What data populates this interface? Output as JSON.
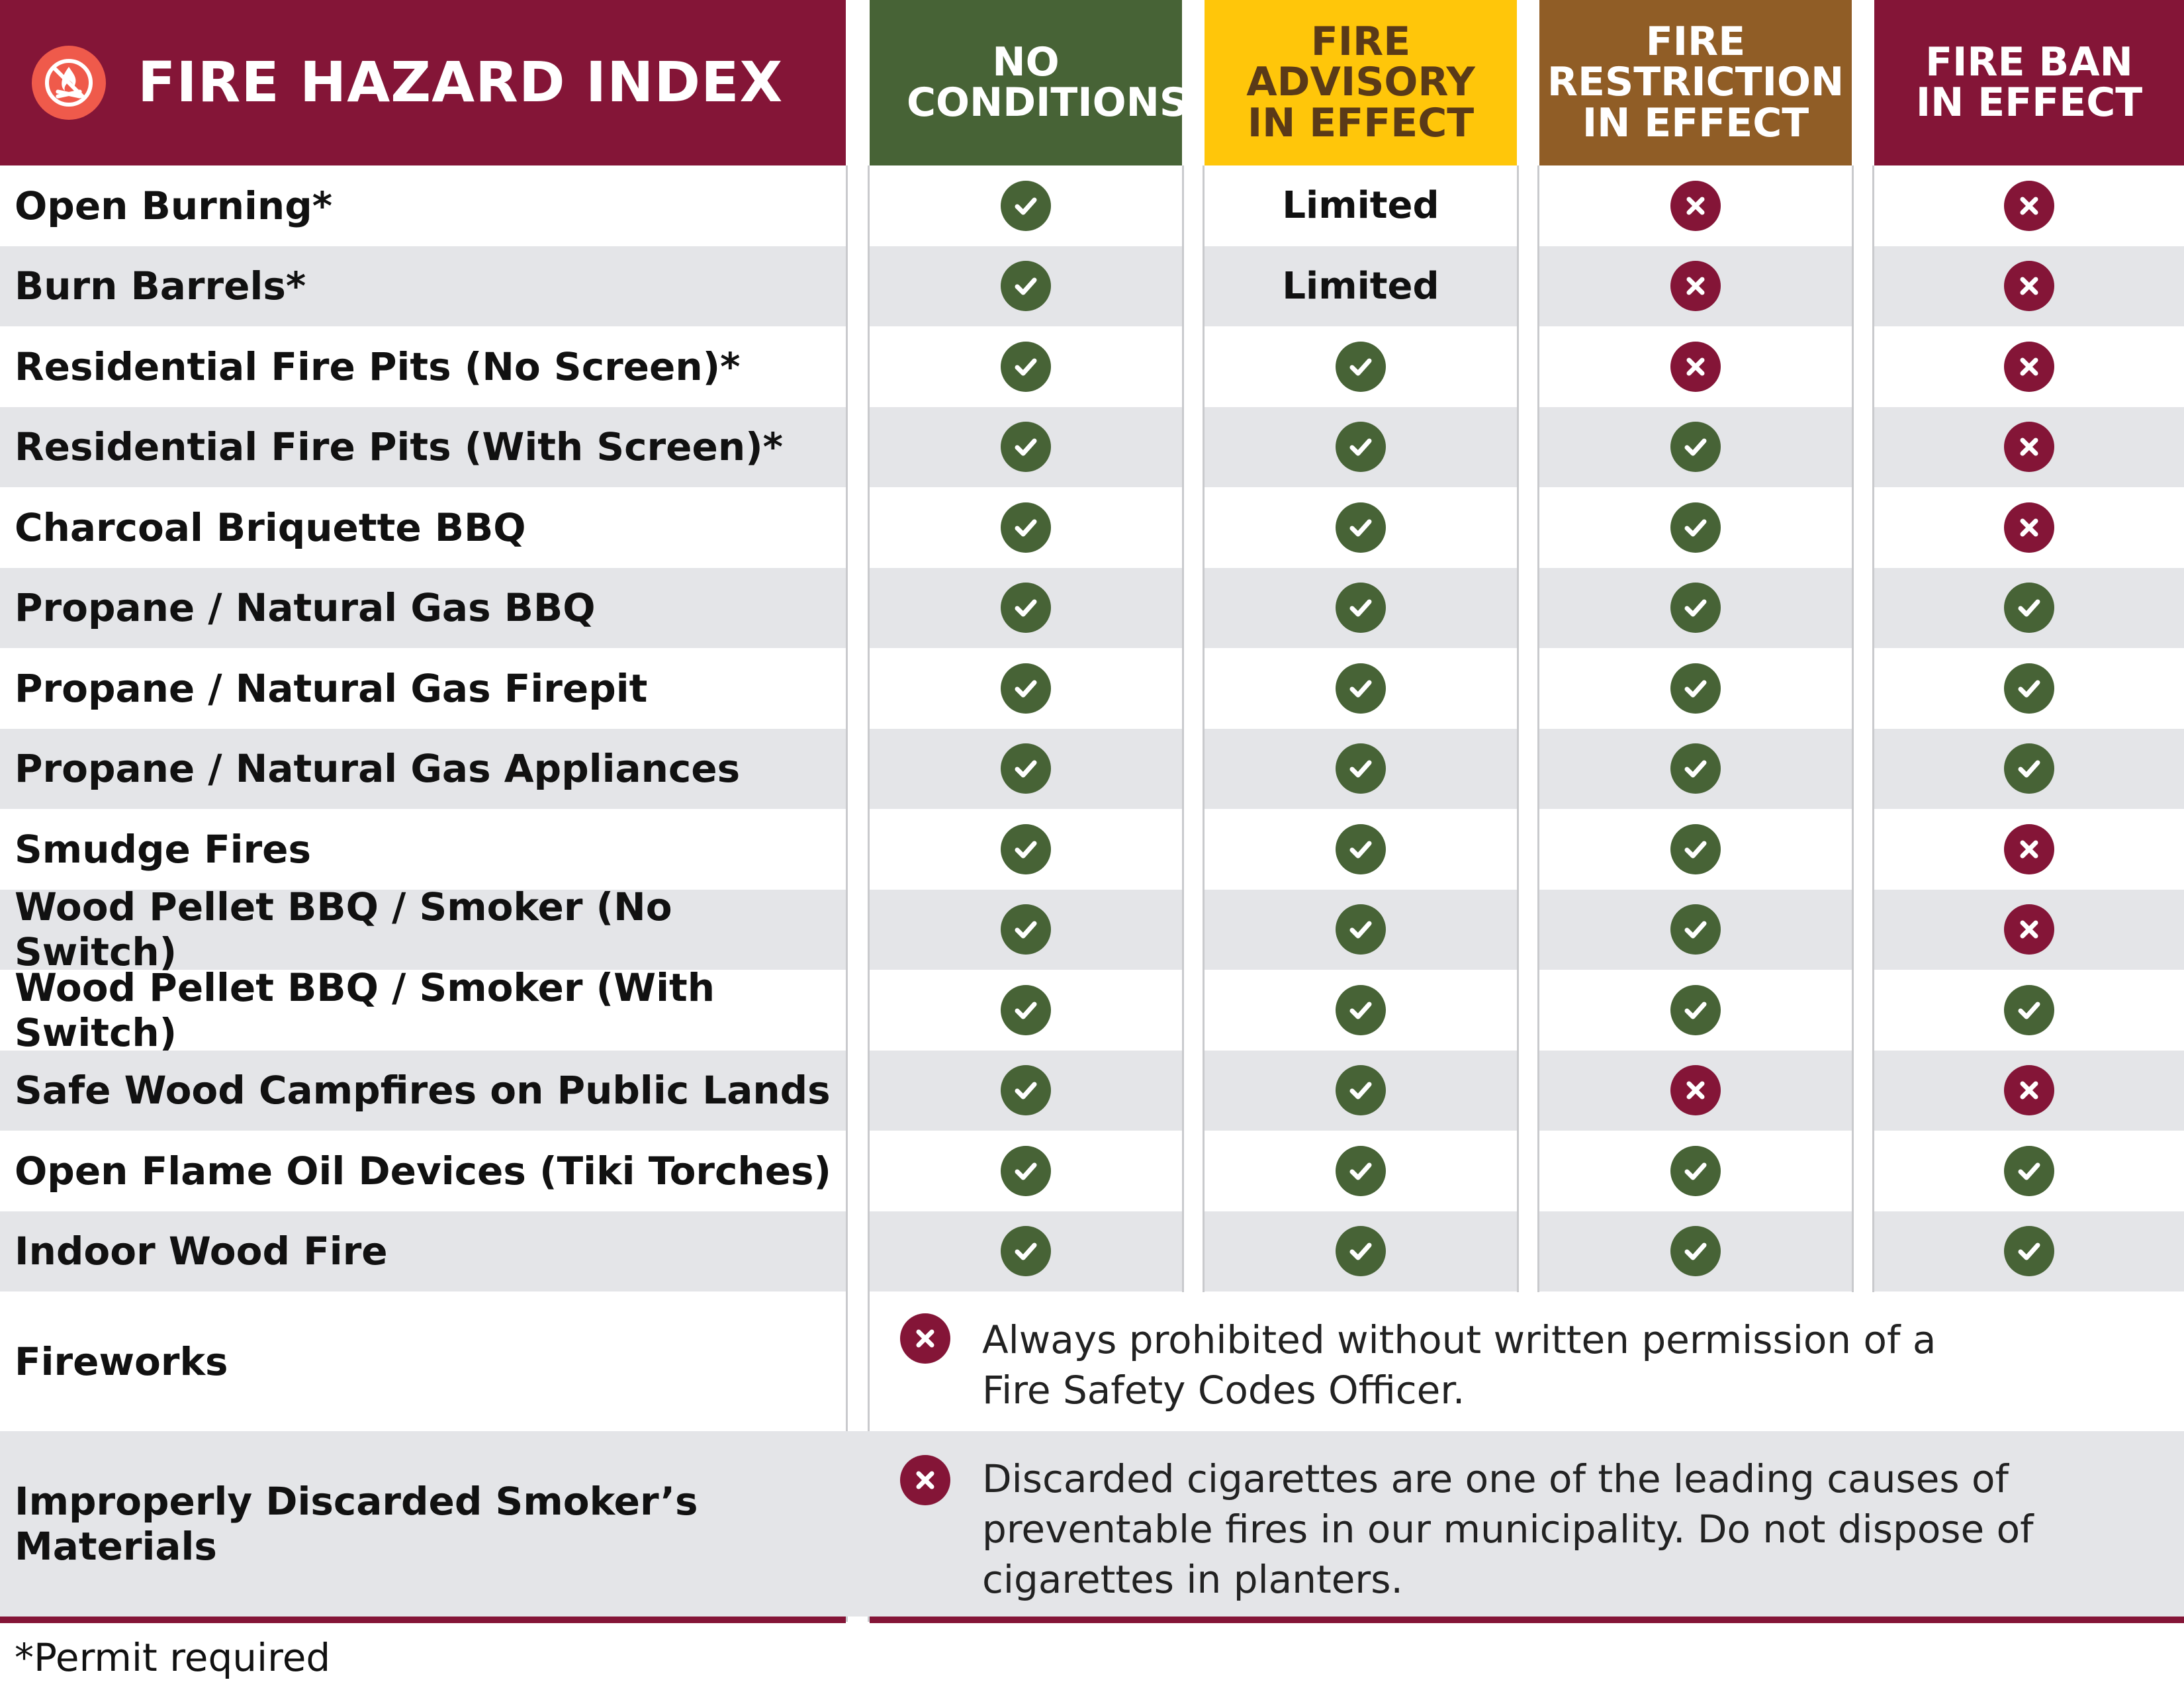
{
  "header": {
    "title": "FIRE HAZARD INDEX",
    "col_no_conditions": "NO CONDITIONS",
    "col_advisory": "FIRE ADVISORY IN EFFECT",
    "col_restriction": "FIRE RESTRICTION IN EFFECT",
    "col_ban": "FIRE BAN IN EFFECT"
  },
  "rows": [
    {
      "label": "Open Burning*",
      "values": [
        "yes",
        "Limited",
        "no",
        "no"
      ]
    },
    {
      "label": "Burn Barrels*",
      "values": [
        "yes",
        "Limited",
        "no",
        "no"
      ]
    },
    {
      "label": "Residential Fire Pits (No Screen)*",
      "values": [
        "yes",
        "yes",
        "no",
        "no"
      ]
    },
    {
      "label": "Residential Fire Pits (With Screen)*",
      "values": [
        "yes",
        "yes",
        "yes",
        "no"
      ]
    },
    {
      "label": "Charcoal Briquette BBQ",
      "values": [
        "yes",
        "yes",
        "yes",
        "no"
      ]
    },
    {
      "label": "Propane / Natural Gas BBQ",
      "values": [
        "yes",
        "yes",
        "yes",
        "yes"
      ]
    },
    {
      "label": "Propane / Natural Gas Firepit",
      "values": [
        "yes",
        "yes",
        "yes",
        "yes"
      ]
    },
    {
      "label": "Propane / Natural Gas Appliances",
      "values": [
        "yes",
        "yes",
        "yes",
        "yes"
      ]
    },
    {
      "label": "Smudge Fires",
      "values": [
        "yes",
        "yes",
        "yes",
        "no"
      ]
    },
    {
      "label": "Wood Pellet BBQ / Smoker (No Switch)",
      "values": [
        "yes",
        "yes",
        "yes",
        "no"
      ]
    },
    {
      "label": "Wood Pellet BBQ / Smoker (With Switch)",
      "values": [
        "yes",
        "yes",
        "yes",
        "yes"
      ]
    },
    {
      "label": "Safe Wood Campfires on Public Lands",
      "values": [
        "yes",
        "yes",
        "no",
        "no"
      ]
    },
    {
      "label": "Open Flame Oil Devices (Tiki Torches)",
      "values": [
        "yes",
        "yes",
        "yes",
        "yes"
      ]
    },
    {
      "label": "Indoor Wood Fire",
      "values": [
        "yes",
        "yes",
        "yes",
        "yes"
      ]
    }
  ],
  "notes": [
    {
      "label": "Fireworks",
      "icon": "x-icon",
      "text_line1": "Always prohibited without written permission of a",
      "text_line2": "Fire Safety Codes Officer.",
      "text_line3": ""
    },
    {
      "label": "Improperly Discarded Smoker’s Materials",
      "icon": "x-icon",
      "text_line1": "Discarded cigarettes are one of the leading causes of",
      "text_line2": "preventable fires in our municipality. Do not dispose of",
      "text_line3": "cigarettes in planters."
    }
  ],
  "footnote": "*Permit required",
  "colors": {
    "maroon": "#841537",
    "green": "#476336",
    "yellow": "#FFC60A",
    "brown": "#905D26",
    "row_shade": "#e4e5e8",
    "logo": "#ef5a4b"
  },
  "icons": {
    "logo": "no-fire-icon",
    "yes": "check-icon",
    "no": "x-icon"
  }
}
